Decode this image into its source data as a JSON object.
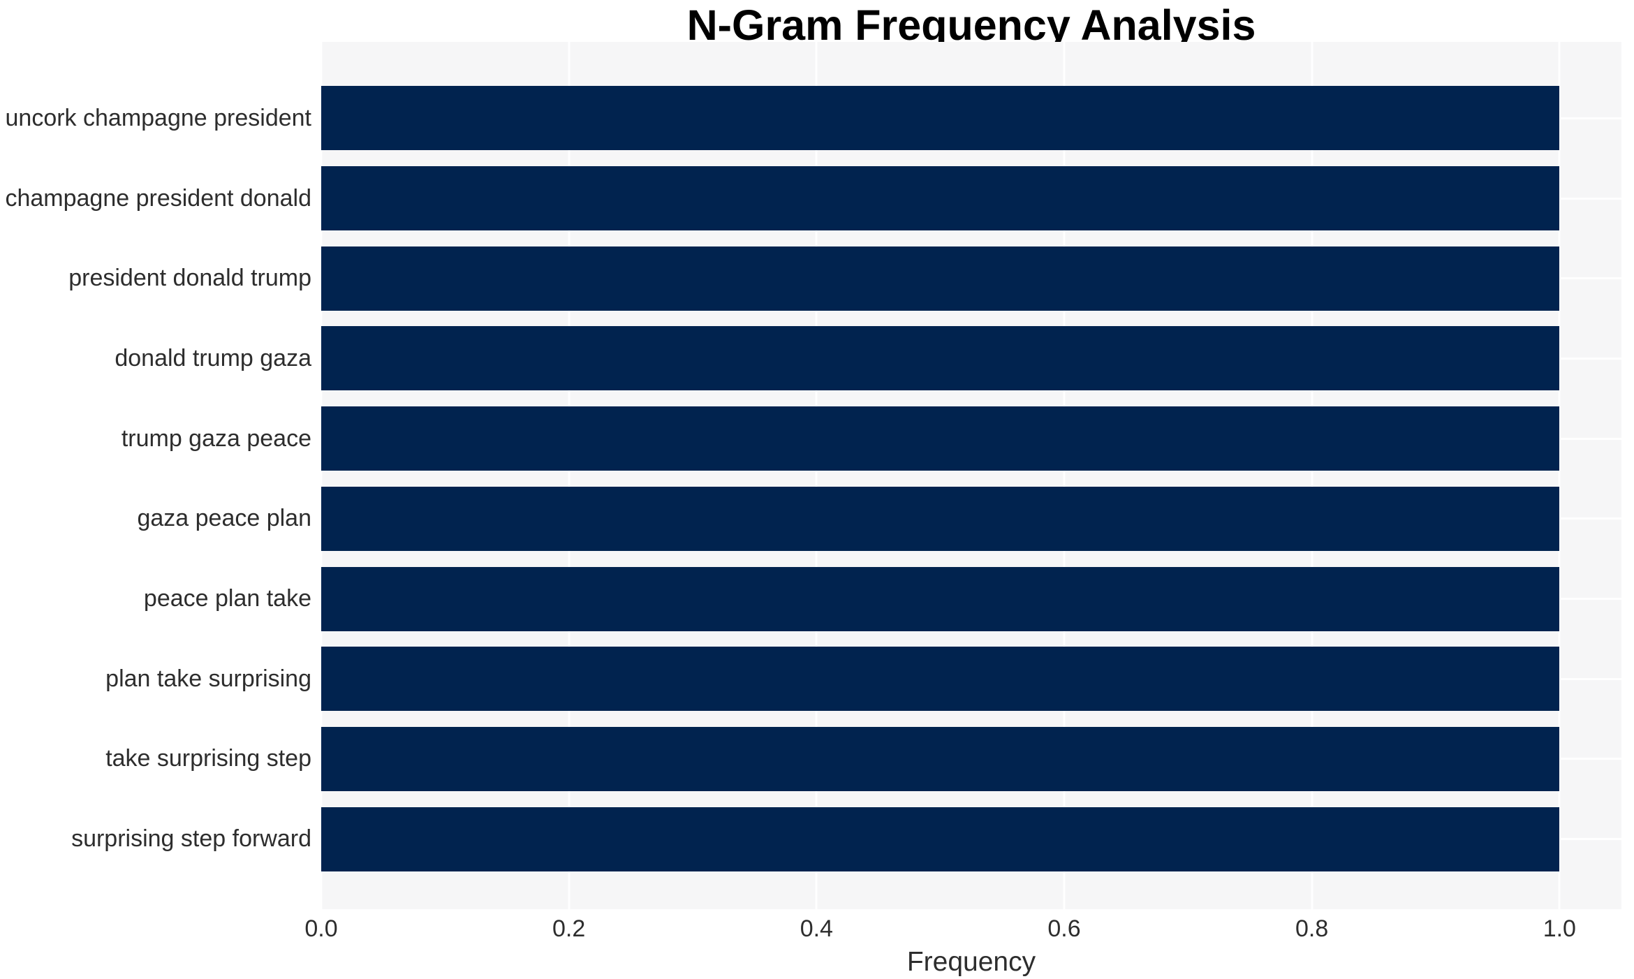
{
  "chart_data": {
    "type": "bar",
    "orientation": "horizontal",
    "title": "N-Gram Frequency Analysis",
    "xlabel": "Frequency",
    "ylabel": "",
    "categories": [
      "uncork champagne president",
      "champagne president donald",
      "president donald trump",
      "donald trump gaza",
      "trump gaza peace",
      "gaza peace plan",
      "peace plan take",
      "plan take surprising",
      "take surprising step",
      "surprising step forward"
    ],
    "values": [
      1.0,
      1.0,
      1.0,
      1.0,
      1.0,
      1.0,
      1.0,
      1.0,
      1.0,
      1.0
    ],
    "x_tick_values": [
      0.0,
      0.2,
      0.4,
      0.6,
      0.8,
      1.0
    ],
    "x_tick_labels": [
      "0.0",
      "0.2",
      "0.4",
      "0.6",
      "0.8",
      "1.0"
    ],
    "xlim": [
      0,
      1.05
    ],
    "grid": true,
    "legend": false,
    "colors": {
      "bar": "#01234f",
      "plot_background": "#f6f6f7",
      "gridline": "#ffffff",
      "tick_text": "#2d2d2d",
      "title_text": "#000000"
    }
  }
}
